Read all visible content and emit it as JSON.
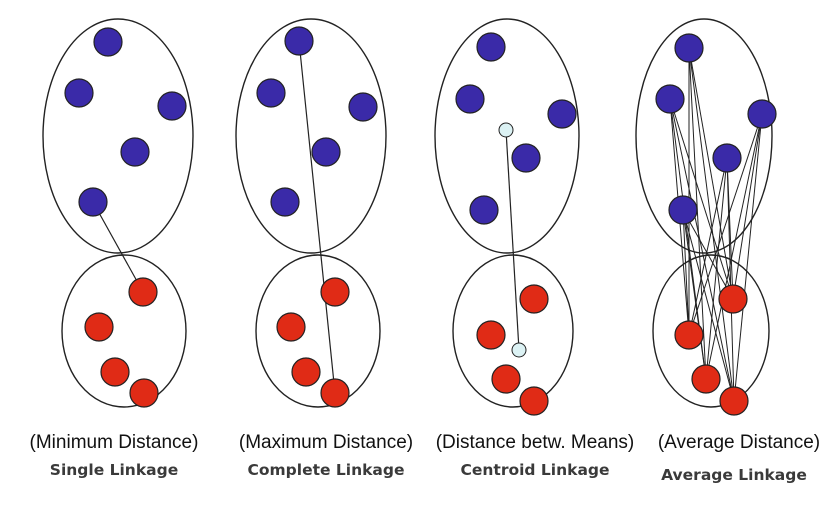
{
  "panels": [
    {
      "id": "single",
      "subtitle": "(Minimum Distance)",
      "title": "Single Linkage",
      "connection": "closest-pair"
    },
    {
      "id": "complete",
      "subtitle": "(Maximum Distance)",
      "title": "Complete Linkage",
      "connection": "farthest-pair"
    },
    {
      "id": "centroid",
      "subtitle": "(Distance betw. Means)",
      "title": "Centroid Linkage",
      "connection": "centroids"
    },
    {
      "id": "average",
      "subtitle": "(Average Distance)",
      "title": "Average Linkage",
      "connection": "all-pairs"
    }
  ],
  "colors": {
    "blue_point": "#3a2aa8",
    "red_point": "#e02b16",
    "centroid": "#dcf2f4",
    "stroke": "#222222",
    "caption": "#111111",
    "title": "#3a3a3a"
  }
}
